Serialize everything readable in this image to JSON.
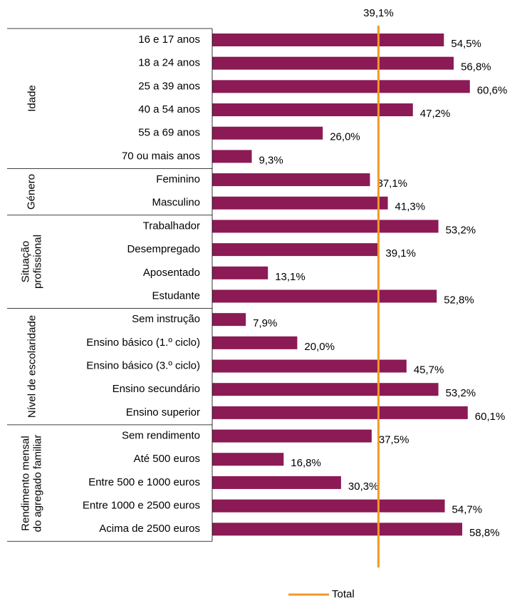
{
  "chart_data": {
    "type": "bar",
    "orientation": "horizontal",
    "color": "#8b1a55",
    "groups": [
      {
        "name": "Idade",
        "categories": [
          "16 e 17 anos",
          "18 a 24 anos",
          "25 a 39 anos",
          "40 a 54 anos",
          "55 a 69 anos",
          "70 ou mais anos"
        ],
        "values": [
          54.5,
          56.8,
          60.6,
          47.2,
          26.0,
          9.3
        ],
        "value_labels": [
          "54,5%",
          "56,8%",
          "60,6%",
          "47,2%",
          "26,0%",
          "9,3%"
        ]
      },
      {
        "name": "Género",
        "categories": [
          "Feminino",
          "Masculino"
        ],
        "values": [
          37.1,
          41.3
        ],
        "value_labels": [
          "37,1%",
          "41,3%"
        ]
      },
      {
        "name": "Situação profissional",
        "categories": [
          "Trabalhador",
          "Desempregado",
          "Aposentado",
          "Estudante"
        ],
        "values": [
          53.2,
          39.1,
          13.1,
          52.8
        ],
        "value_labels": [
          "53,2%",
          "39,1%",
          "13,1%",
          "52,8%"
        ]
      },
      {
        "name": "Nível de escolaridade",
        "categories": [
          "Sem instrução",
          "Ensino básico (1.º ciclo)",
          "Ensino básico (3.º ciclo)",
          "Ensino secundário",
          "Ensino superior"
        ],
        "values": [
          7.9,
          20.0,
          45.7,
          53.2,
          60.1
        ],
        "value_labels": [
          "7,9%",
          "20,0%",
          "45,7%",
          "53,2%",
          "60,1%"
        ]
      },
      {
        "name": "Rendimento mensal do agregado familiar",
        "categories": [
          "Sem rendimento",
          "Até 500 euros",
          "Entre 500 e 1000 euros",
          "Entre 1000 e 2500 euros",
          "Acima de 2500 euros"
        ],
        "values": [
          37.5,
          16.8,
          30.3,
          54.7,
          58.8
        ],
        "value_labels": [
          "37,5%",
          "16,8%",
          "30,3%",
          "54,7%",
          "58,8%"
        ]
      }
    ],
    "reference_line": {
      "name": "Total",
      "value": 39.1,
      "label": "39,1%",
      "color": "#f39a26"
    }
  }
}
